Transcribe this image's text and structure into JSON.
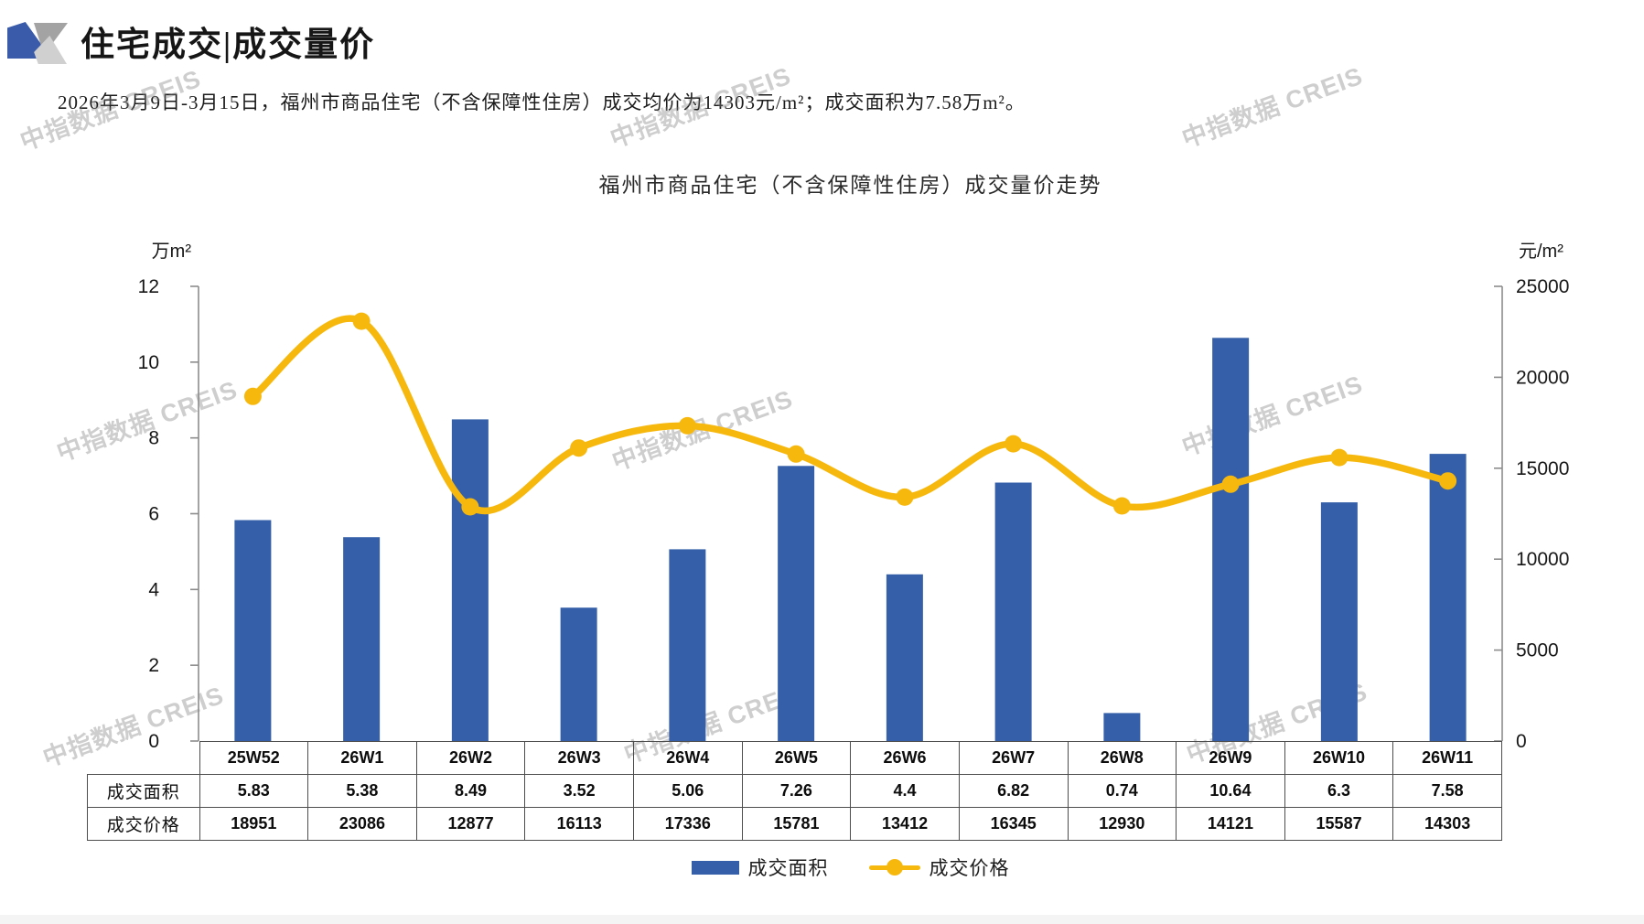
{
  "page": {
    "title": "住宅成交|成交量价",
    "subtitle": "2026年3月9日-3月15日，福州市商品住宅（不含保障性住房）成交均价为14303元/m²；成交面积为7.58万m²。"
  },
  "watermark": {
    "text": "中指数据 CREIS"
  },
  "chart_data": {
    "type": "bar+line combo",
    "title": "福州市商品住宅（不含保障性住房）成交量价走势",
    "categories": [
      "25W52",
      "26W1",
      "26W2",
      "26W3",
      "26W4",
      "26W5",
      "26W6",
      "26W7",
      "26W8",
      "26W9",
      "26W10",
      "26W11"
    ],
    "series": [
      {
        "name": "成交面积",
        "type": "bar",
        "axis": "left",
        "color": "#3560a9",
        "values": [
          5.83,
          5.38,
          8.49,
          3.52,
          5.06,
          7.26,
          4.4,
          6.82,
          0.74,
          10.64,
          6.3,
          7.58
        ]
      },
      {
        "name": "成交价格",
        "type": "line",
        "axis": "right",
        "color": "#f7b80e",
        "values": [
          18951,
          23086,
          12877,
          16113,
          17336,
          15781,
          13412,
          16345,
          12930,
          14121,
          15587,
          14303
        ]
      }
    ],
    "left_axis": {
      "label": "万m²",
      "min": 0,
      "max": 12,
      "ticks": [
        0,
        2,
        4,
        6,
        8,
        10,
        12
      ]
    },
    "right_axis": {
      "label": "元/m²",
      "min": 0,
      "max": 25000,
      "ticks": [
        0,
        5000,
        10000,
        15000,
        20000,
        25000
      ]
    },
    "grid": false,
    "legend_position": "bottom"
  },
  "table": {
    "row_labels": [
      "成交面积",
      "成交价格"
    ]
  }
}
